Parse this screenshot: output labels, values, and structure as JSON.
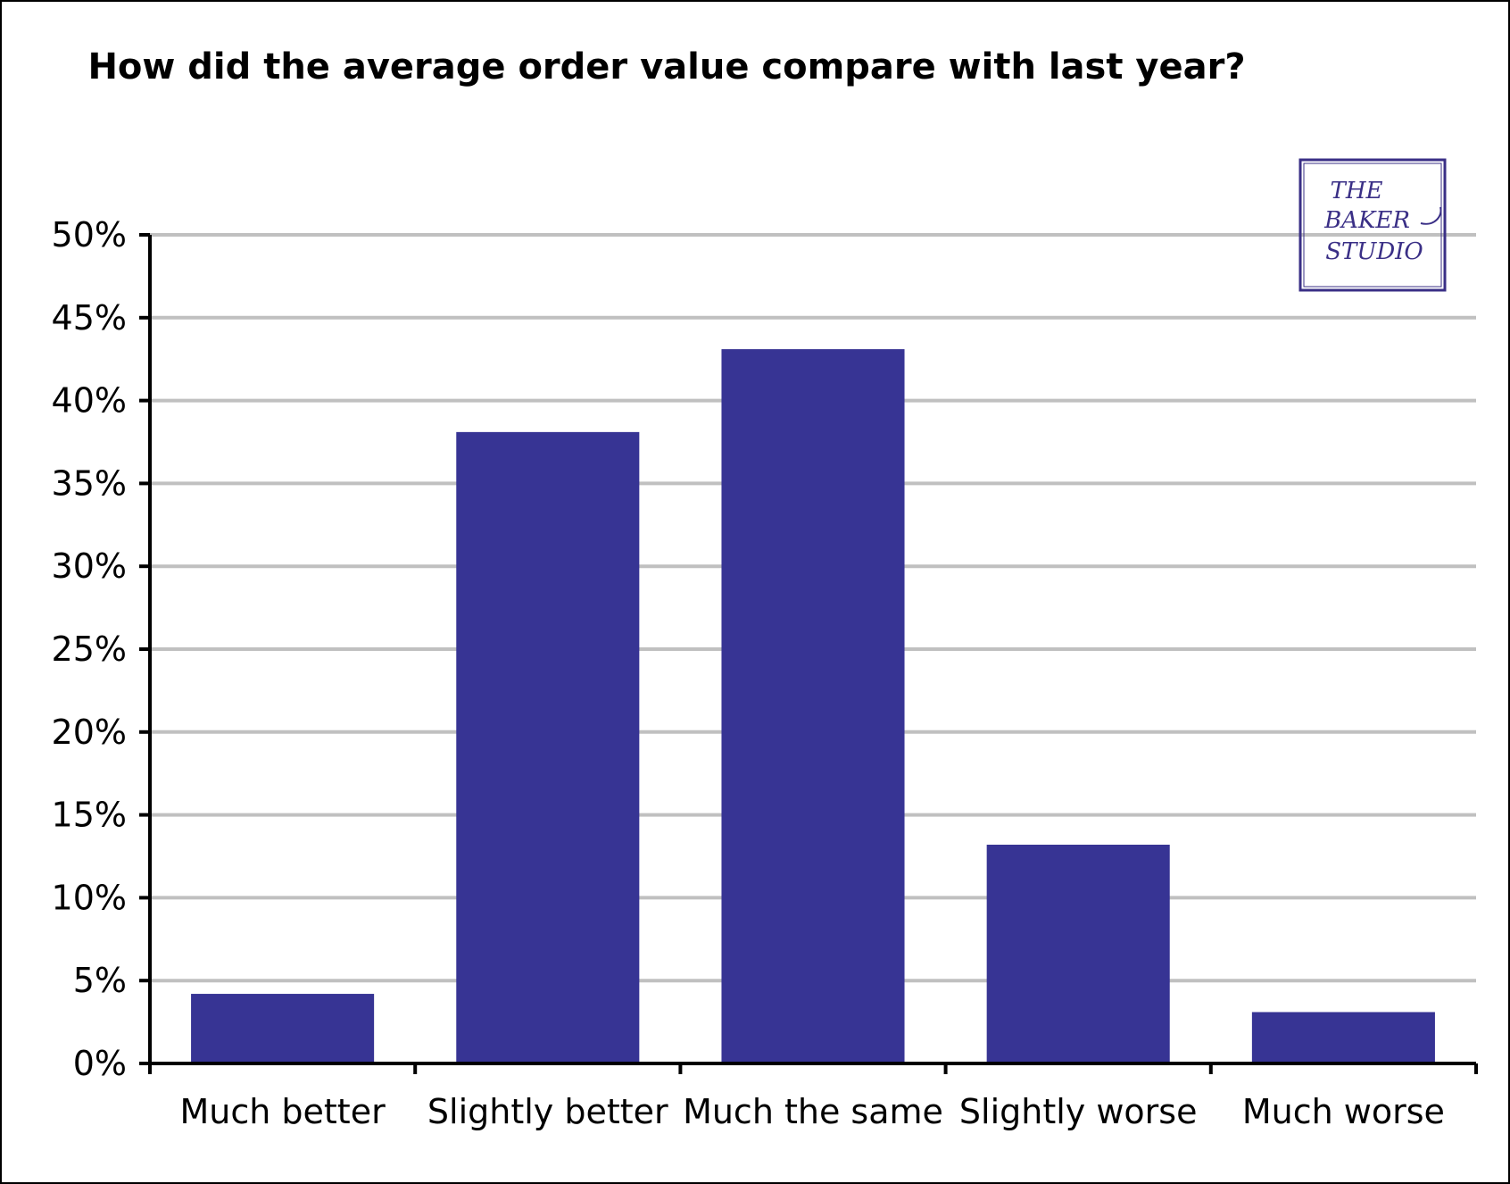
{
  "chart_data": {
    "type": "bar",
    "title": "How did the average order value compare with last year?",
    "xlabel": "",
    "ylabel": "",
    "categories": [
      "Much better",
      "Slightly better",
      "Much the same",
      "Slightly worse",
      "Much worse"
    ],
    "values": [
      4.2,
      38.1,
      43.1,
      13.2,
      3.1
    ],
    "ylim": [
      0,
      50
    ],
    "y_ticks": [
      0,
      5,
      10,
      15,
      20,
      25,
      30,
      35,
      40,
      45,
      50
    ],
    "y_tick_labels": [
      "0%",
      "5%",
      "10%",
      "15%",
      "20%",
      "25%",
      "30%",
      "35%",
      "40%",
      "45%",
      "50%"
    ],
    "grid": true,
    "legend": "none",
    "bar_color": "#373494",
    "grid_color": "#c0c0c0"
  },
  "logo": {
    "text_lines": [
      "THE",
      "BAKER",
      "STUDIO"
    ],
    "color": "#3a2f86"
  }
}
